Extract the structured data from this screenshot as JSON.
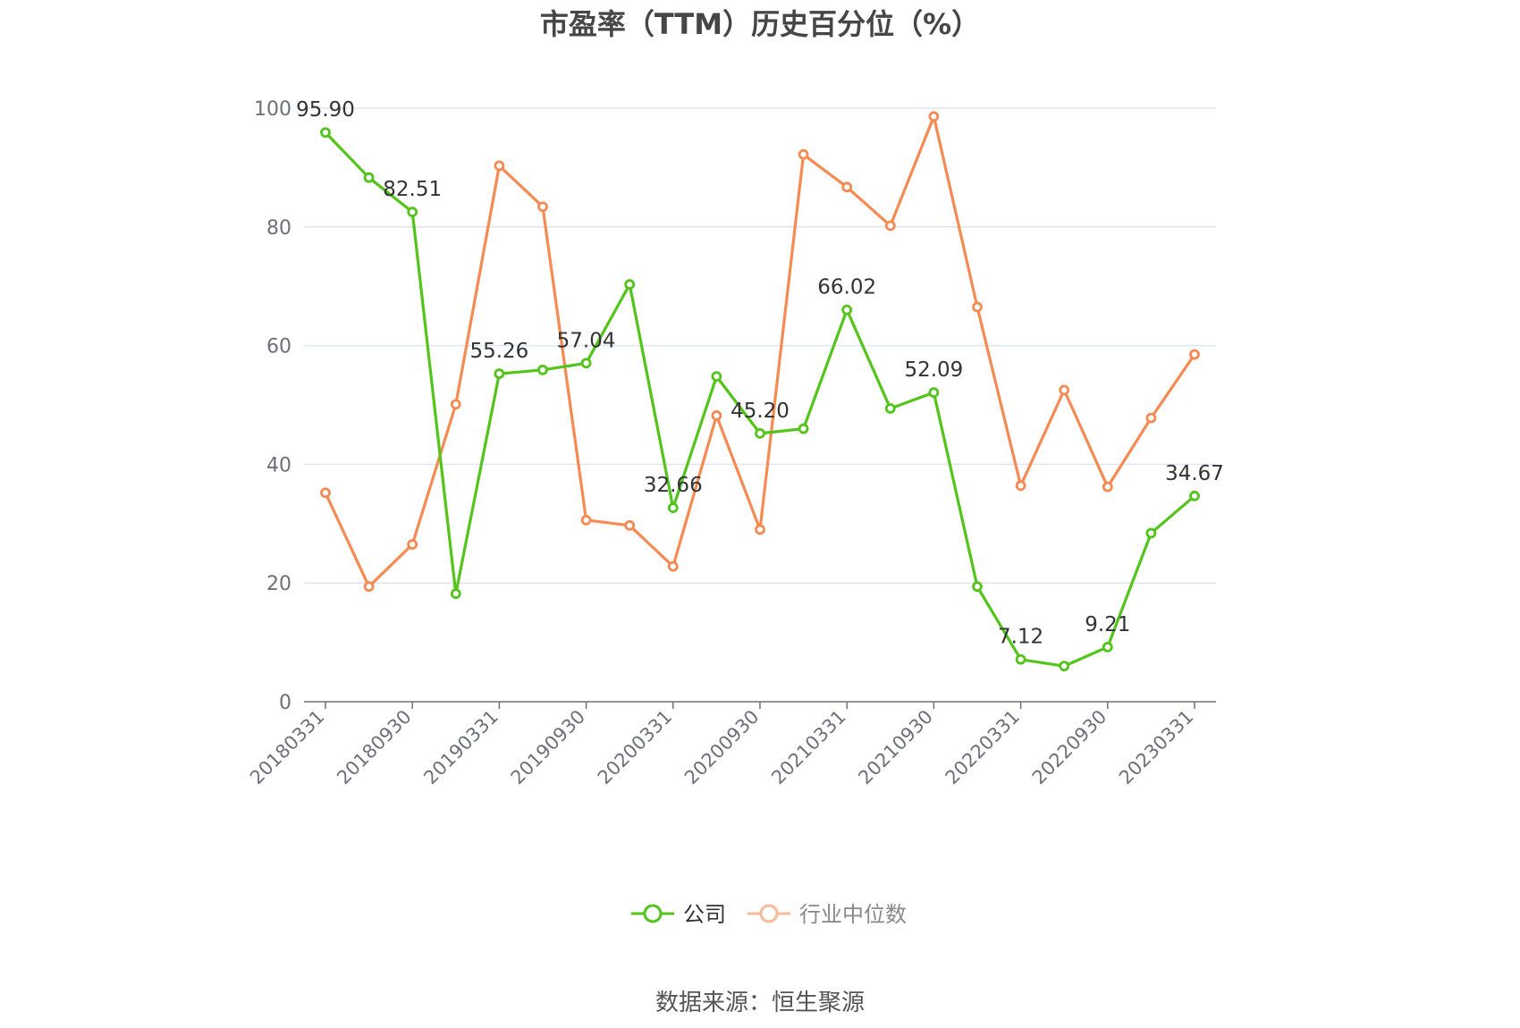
{
  "chart_data": {
    "type": "line",
    "title": "市盈率（TTM）历史百分位（%）",
    "xlabel": "",
    "ylabel": "",
    "ylim": [
      0,
      100
    ],
    "yticks": [
      0,
      20,
      40,
      60,
      80,
      100
    ],
    "grid": true,
    "legend_position": "bottom",
    "x": [
      "20180331",
      "20180630",
      "20180930",
      "20181231",
      "20190331",
      "20190630",
      "20190930",
      "20191231",
      "20200331",
      "20200630",
      "20200930",
      "20201231",
      "20210331",
      "20210630",
      "20210930",
      "20211231",
      "20220331",
      "20220630",
      "20220930",
      "20221231",
      "20230331"
    ],
    "x_tick_labels": [
      "20180331",
      "20180930",
      "20190331",
      "20190930",
      "20200331",
      "20200930",
      "20210331",
      "20210930",
      "20220331",
      "20220930",
      "20230331"
    ],
    "series": [
      {
        "name": "公司",
        "color": "#52c41a",
        "values": [
          95.9,
          88.3,
          82.51,
          18.2,
          55.26,
          55.9,
          57.04,
          70.3,
          32.66,
          54.8,
          45.2,
          46.0,
          66.02,
          49.4,
          52.09,
          19.4,
          7.12,
          6.0,
          9.21,
          28.4,
          34.67
        ],
        "labels": [
          "95.90",
          "",
          "82.51",
          "",
          "55.26",
          "",
          "57.04",
          "",
          "32.66",
          "",
          "45.20",
          "",
          "66.02",
          "",
          "52.09",
          "",
          "7.12",
          "",
          "9.21",
          "",
          "34.67"
        ]
      },
      {
        "name": "行业中位数",
        "color": "#f58a53",
        "values": [
          35.2,
          19.4,
          26.5,
          50.1,
          90.3,
          83.4,
          30.6,
          29.7,
          22.8,
          48.2,
          29.0,
          92.2,
          86.7,
          80.2,
          98.6,
          66.5,
          36.4,
          52.5,
          36.2,
          47.8,
          58.5
        ]
      }
    ]
  },
  "legend": {
    "items": [
      {
        "name": "公司",
        "color": "#52c41a",
        "text_color": "#333333"
      },
      {
        "name": "行业中位数",
        "color": "#f9b898",
        "text_color": "#888888"
      }
    ]
  },
  "source_text": "数据来源：恒生聚源",
  "colors": {
    "grid": "#e0e6f1",
    "axis": "#6e7079"
  }
}
